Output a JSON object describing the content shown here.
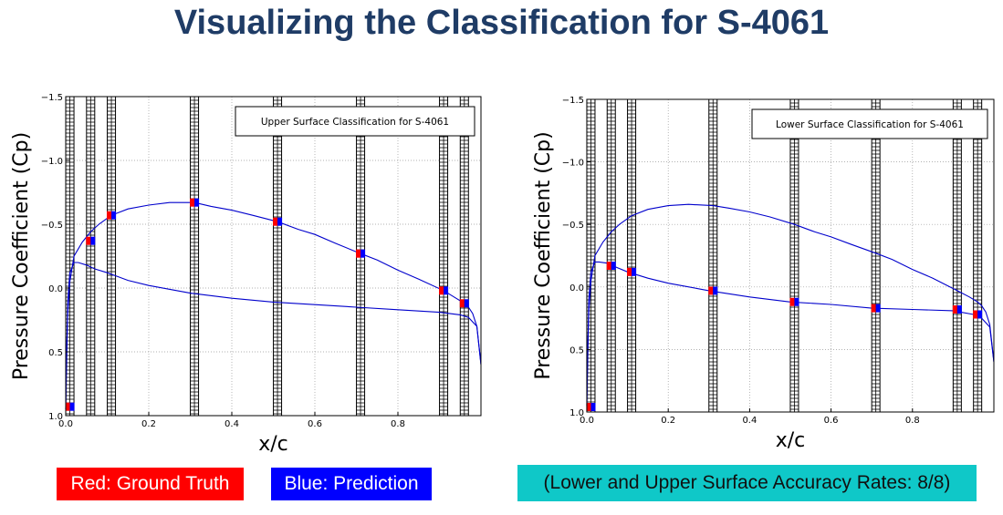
{
  "page": {
    "title": "Visualizing the Classification for S-4061"
  },
  "legend": {
    "red_label": "Red: Ground Truth",
    "blue_label": "Blue: Prediction",
    "accuracy_label": "(Lower and Upper Surface Accuracy Rates: 8/8)",
    "red_color": "#ff0000",
    "blue_color": "#0000ff",
    "accuracy_color": "#0fc8c8"
  },
  "chart_data": [
    {
      "type": "line",
      "annotation": "Upper Surface Classification for S-4061",
      "xlabel": "x/c",
      "ylabel": "Pressure Coefficient (Cp)",
      "xlim": [
        0,
        1.0
      ],
      "ylim": [
        1.0,
        -1.5
      ],
      "y_inverted": true,
      "grid": true,
      "xticks": [
        "0.0",
        "0.2",
        "0.4",
        "0.6",
        "0.8"
      ],
      "yticks": [
        "−1.5",
        "−1.0",
        "−0.5",
        "0.0",
        "0.5",
        "1.0"
      ],
      "line_color": "#0000cc",
      "upper_curve": {
        "x": [
          0,
          0.002,
          0.005,
          0.01,
          0.02,
          0.04,
          0.06,
          0.08,
          0.11,
          0.15,
          0.2,
          0.25,
          0.31,
          0.35,
          0.4,
          0.45,
          0.51,
          0.56,
          0.6,
          0.65,
          0.71,
          0.75,
          0.8,
          0.85,
          0.91,
          0.94,
          0.96,
          0.97,
          0.98,
          0.99,
          1.0
        ],
        "y": [
          0.95,
          0.5,
          0.2,
          -0.05,
          -0.25,
          -0.36,
          -0.44,
          -0.5,
          -0.57,
          -0.62,
          -0.65,
          -0.67,
          -0.67,
          -0.64,
          -0.61,
          -0.57,
          -0.52,
          -0.46,
          -0.42,
          -0.35,
          -0.27,
          -0.22,
          -0.14,
          -0.07,
          0.02,
          0.08,
          0.12,
          0.15,
          0.2,
          0.3,
          0.6
        ]
      },
      "lower_curve": {
        "x": [
          0,
          0.005,
          0.01,
          0.02,
          0.03,
          0.05,
          0.07,
          0.1,
          0.15,
          0.2,
          0.3,
          0.4,
          0.5,
          0.6,
          0.7,
          0.8,
          0.9,
          0.95,
          0.97,
          0.99,
          1.0
        ],
        "y": [
          0.95,
          0.1,
          -0.12,
          -0.2,
          -0.2,
          -0.18,
          -0.15,
          -0.12,
          -0.06,
          -0.02,
          0.04,
          0.08,
          0.11,
          0.13,
          0.15,
          0.17,
          0.19,
          0.21,
          0.23,
          0.3,
          0.6
        ]
      },
      "bands_x": [
        0.01,
        0.06,
        0.11,
        0.31,
        0.51,
        0.71,
        0.91,
        0.96
      ],
      "points": {
        "x": [
          0.01,
          0.06,
          0.11,
          0.31,
          0.51,
          0.71,
          0.91,
          0.96
        ],
        "y": [
          0.93,
          -0.37,
          -0.57,
          -0.67,
          -0.52,
          -0.27,
          0.02,
          0.12
        ]
      }
    },
    {
      "type": "line",
      "annotation": "Lower Surface Classification for S-4061",
      "xlabel": "x/c",
      "ylabel": "Pressure Coefficient (Cp)",
      "xlim": [
        0,
        1.0
      ],
      "ylim": [
        1.0,
        -1.5
      ],
      "y_inverted": true,
      "grid": true,
      "xticks": [
        "0.0",
        "0.2",
        "0.4",
        "0.6",
        "0.8"
      ],
      "yticks": [
        "−1.5",
        "−1.0",
        "−0.5",
        "0.0",
        "0.5",
        "1.0"
      ],
      "line_color": "#0000cc",
      "upper_curve": {
        "x": [
          0,
          0.002,
          0.005,
          0.01,
          0.02,
          0.04,
          0.06,
          0.08,
          0.11,
          0.15,
          0.2,
          0.25,
          0.31,
          0.35,
          0.4,
          0.45,
          0.51,
          0.56,
          0.6,
          0.65,
          0.71,
          0.75,
          0.8,
          0.85,
          0.91,
          0.94,
          0.96,
          0.97,
          0.98,
          0.99,
          1.0
        ],
        "y": [
          0.95,
          0.5,
          0.2,
          -0.05,
          -0.25,
          -0.36,
          -0.44,
          -0.5,
          -0.57,
          -0.62,
          -0.65,
          -0.66,
          -0.65,
          -0.63,
          -0.6,
          -0.56,
          -0.5,
          -0.44,
          -0.4,
          -0.34,
          -0.27,
          -0.22,
          -0.14,
          -0.07,
          0.03,
          0.08,
          0.12,
          0.15,
          0.2,
          0.3,
          0.6
        ]
      },
      "lower_curve": {
        "x": [
          0,
          0.005,
          0.01,
          0.02,
          0.03,
          0.05,
          0.07,
          0.1,
          0.15,
          0.2,
          0.3,
          0.4,
          0.5,
          0.6,
          0.7,
          0.8,
          0.9,
          0.95,
          0.97,
          0.99,
          1.0
        ],
        "y": [
          0.95,
          0.1,
          -0.12,
          -0.2,
          -0.2,
          -0.19,
          -0.16,
          -0.12,
          -0.07,
          -0.03,
          0.03,
          0.08,
          0.12,
          0.14,
          0.17,
          0.18,
          0.19,
          0.22,
          0.25,
          0.32,
          0.6
        ]
      },
      "bands_x": [
        0.01,
        0.06,
        0.11,
        0.31,
        0.51,
        0.71,
        0.91,
        0.96
      ],
      "points": {
        "x": [
          0.01,
          0.06,
          0.11,
          0.31,
          0.51,
          0.71,
          0.91,
          0.96
        ],
        "y": [
          0.96,
          -0.17,
          -0.12,
          0.03,
          0.12,
          0.17,
          0.18,
          0.22
        ]
      }
    }
  ]
}
